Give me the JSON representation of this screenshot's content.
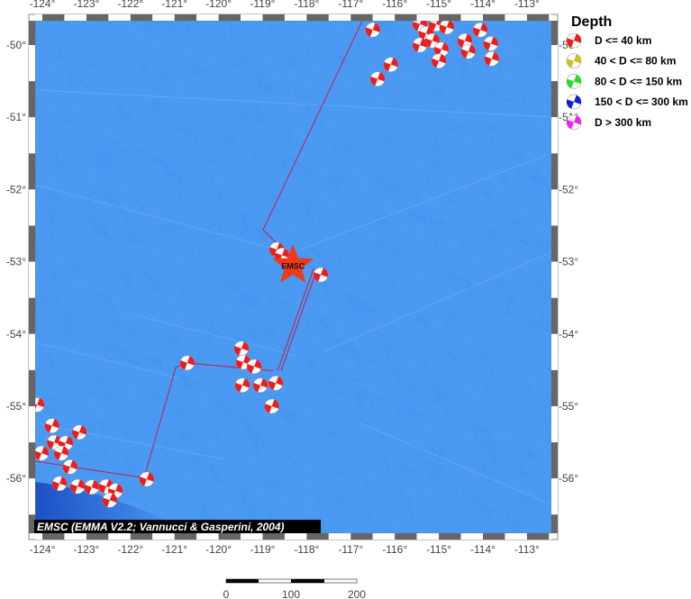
{
  "map": {
    "extent": {
      "lon": [
        -124.16,
        -112.44
      ],
      "lat": [
        -56.76,
        -49.66
      ]
    },
    "lon_ticks": [
      -124,
      -123,
      -122,
      -121,
      -120,
      -119,
      -118,
      -117,
      -116,
      -115,
      -114,
      -113
    ],
    "lat_ticks": [
      -50,
      -51,
      -52,
      -53,
      -54,
      -55,
      -56
    ],
    "degree_symbol": "°",
    "ocean_color": "#3b8ef0",
    "event_color": "#ee1c1c",
    "epicenter": {
      "lon": -118.31,
      "lat": -53.05,
      "label": "EMSC",
      "color": "#f03a17"
    },
    "events": [
      [
        -116.5,
        -49.79
      ],
      [
        -115.43,
        -49.71
      ],
      [
        -115.29,
        -49.84
      ],
      [
        -115.06,
        -49.71
      ],
      [
        -114.82,
        -49.75
      ],
      [
        -115.15,
        -49.94
      ],
      [
        -115.43,
        -50.0
      ],
      [
        -114.94,
        -50.06
      ],
      [
        -115.0,
        -50.22
      ],
      [
        -114.41,
        -49.94
      ],
      [
        -114.06,
        -49.79
      ],
      [
        -113.82,
        -49.98
      ],
      [
        -114.33,
        -50.09
      ],
      [
        -113.8,
        -50.19
      ],
      [
        -116.09,
        -50.27
      ],
      [
        -116.39,
        -50.47
      ],
      [
        -118.68,
        -52.83
      ],
      [
        -118.56,
        -52.91
      ],
      [
        -117.68,
        -53.18
      ],
      [
        -119.48,
        -54.2
      ],
      [
        -119.44,
        -54.39
      ],
      [
        -119.19,
        -54.45
      ],
      [
        -120.71,
        -54.4
      ],
      [
        -119.46,
        -54.71
      ],
      [
        -119.05,
        -54.71
      ],
      [
        -118.7,
        -54.68
      ],
      [
        -118.79,
        -55.0
      ],
      [
        -124.12,
        -54.98
      ],
      [
        -123.78,
        -55.27
      ],
      [
        -123.16,
        -55.36
      ],
      [
        -124.02,
        -55.65
      ],
      [
        -123.73,
        -55.5
      ],
      [
        -123.47,
        -55.51
      ],
      [
        -123.57,
        -55.65
      ],
      [
        -123.37,
        -55.84
      ],
      [
        -123.61,
        -56.07
      ],
      [
        -123.2,
        -56.11
      ],
      [
        -122.88,
        -56.12
      ],
      [
        -122.55,
        -56.11
      ],
      [
        -122.34,
        -56.17
      ],
      [
        -122.47,
        -56.3
      ],
      [
        -121.63,
        -56.01
      ]
    ],
    "plate_boundaries": [
      [
        [
          -116.68,
          -49.59
        ],
        [
          -118.99,
          -52.56
        ],
        [
          -118.21,
          -53.02
        ]
      ],
      [
        [
          -117.84,
          -53.09
        ],
        [
          -118.66,
          -54.51
        ]
      ],
      [
        [
          -117.76,
          -53.09
        ],
        [
          -118.58,
          -54.51
        ]
      ],
      [
        [
          -120.71,
          -54.4
        ],
        [
          -118.76,
          -54.51
        ]
      ],
      [
        [
          -120.71,
          -54.4
        ],
        [
          -120.97,
          -54.46
        ],
        [
          -121.69,
          -55.99
        ]
      ],
      [
        [
          -121.69,
          -55.99
        ],
        [
          -122.9,
          -55.88
        ],
        [
          -124.16,
          -55.76
        ]
      ]
    ],
    "boundary_color": "#b0306a",
    "attribution": "EMSC (EMMA V2.2; Vannucci & Gasperini, 2004)"
  },
  "legend": {
    "title": "Depth",
    "items": [
      {
        "label": "D <= 40 km",
        "color": "#ee1c1c"
      },
      {
        "label": "40 < D <= 80 km",
        "color": "#c8c020"
      },
      {
        "label": "80 < D <= 150 km",
        "color": "#22e022"
      },
      {
        "label": "150 < D <= 300 km",
        "color": "#1020d8"
      },
      {
        "label": "D > 300 km",
        "color": "#f020f0"
      }
    ]
  },
  "scale_bar": {
    "labels": [
      "0",
      "100",
      "200"
    ]
  }
}
